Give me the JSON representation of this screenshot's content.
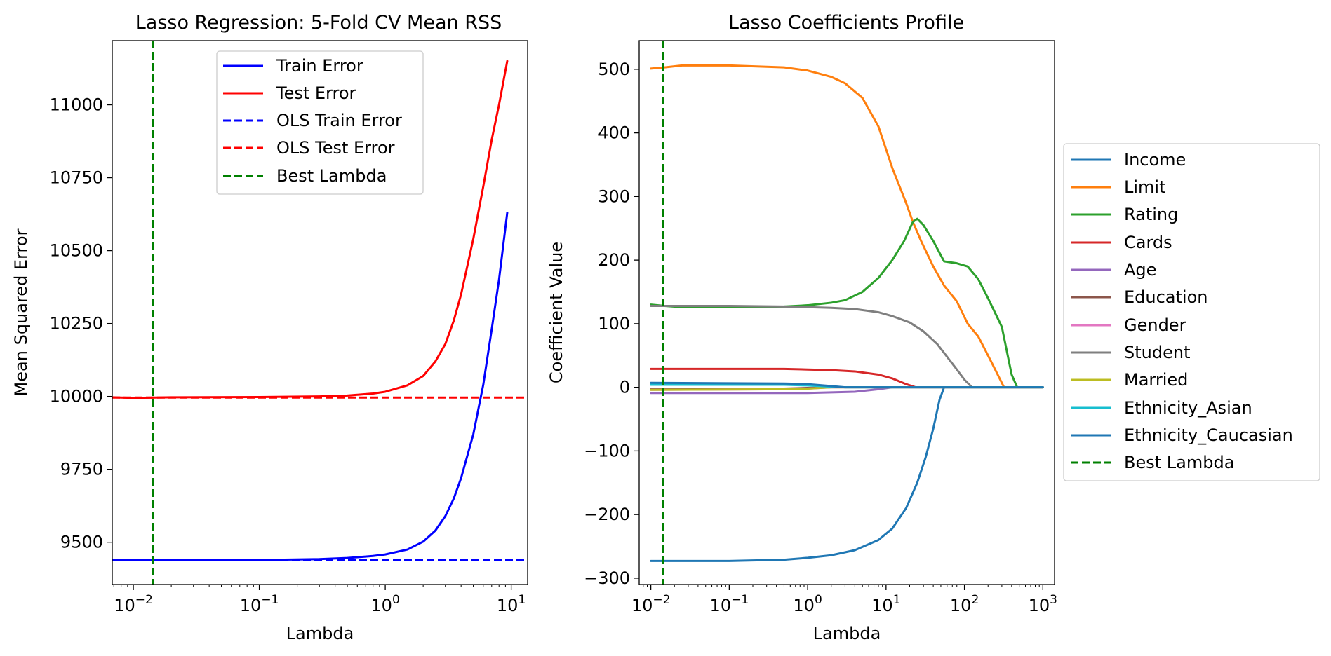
{
  "chart_data": [
    {
      "type": "line",
      "title": "Lasso Regression: 5-Fold CV Mean RSS",
      "xlabel": "Lambda",
      "ylabel": "Mean Squared Error",
      "xscale": "log",
      "xlim": [
        0.0068,
        13.5
      ],
      "ylim": [
        9355,
        11220
      ],
      "grid": false,
      "legend_position": "top-center",
      "x_ticks": [
        {
          "value": 0.01,
          "base": "10",
          "exp": "−2"
        },
        {
          "value": 0.1,
          "base": "10",
          "exp": "−1"
        },
        {
          "value": 1,
          "base": "10",
          "exp": "0"
        },
        {
          "value": 10,
          "base": "10",
          "exp": "1"
        }
      ],
      "y_ticks": [
        {
          "value": 9500,
          "label": "9500"
        },
        {
          "value": 9750,
          "label": "9750"
        },
        {
          "value": 10000,
          "label": "10000"
        },
        {
          "value": 10250,
          "label": "10250"
        },
        {
          "value": 10500,
          "label": "10500"
        },
        {
          "value": 10750,
          "label": "10750"
        },
        {
          "value": 11000,
          "label": "11000"
        }
      ],
      "series": [
        {
          "name": "Train Error",
          "color": "#0000ff",
          "style": "solid",
          "points": [
            [
              0.0068,
              9438
            ],
            [
              0.1,
              9439
            ],
            [
              0.3,
              9442
            ],
            [
              0.5,
              9446
            ],
            [
              0.8,
              9453
            ],
            [
              1,
              9458
            ],
            [
              1.5,
              9475
            ],
            [
              2,
              9502
            ],
            [
              2.5,
              9540
            ],
            [
              3,
              9590
            ],
            [
              3.5,
              9650
            ],
            [
              4,
              9720
            ],
            [
              5,
              9870
            ],
            [
              6,
              10040
            ],
            [
              7,
              10230
            ],
            [
              8,
              10400
            ],
            [
              9.3,
              10630
            ]
          ]
        },
        {
          "name": "Test Error",
          "color": "#ff0000",
          "style": "solid",
          "points": [
            [
              0.0068,
              9997
            ],
            [
              0.01,
              9995
            ],
            [
              0.02,
              9997
            ],
            [
              0.1,
              9998
            ],
            [
              0.3,
              10000
            ],
            [
              0.5,
              10003
            ],
            [
              0.8,
              10010
            ],
            [
              1,
              10016
            ],
            [
              1.5,
              10038
            ],
            [
              2,
              10070
            ],
            [
              2.5,
              10120
            ],
            [
              3,
              10180
            ],
            [
              3.5,
              10260
            ],
            [
              4,
              10350
            ],
            [
              5,
              10540
            ],
            [
              6,
              10720
            ],
            [
              7,
              10880
            ],
            [
              8,
              11000
            ],
            [
              9.3,
              11150
            ]
          ]
        },
        {
          "name": "OLS Train Error",
          "color": "#0000ff",
          "style": "dashed",
          "hline": 9438
        },
        {
          "name": "OLS Test Error",
          "color": "#ff0000",
          "style": "dashed",
          "hline": 9996
        },
        {
          "name": "Best Lambda",
          "color": "#008000",
          "style": "dashed",
          "vline": 0.0143
        }
      ]
    },
    {
      "type": "line",
      "title": "Lasso Coefficients Profile",
      "xlabel": "Lambda",
      "ylabel": "Coefficient Value",
      "xscale": "log",
      "xlim": [
        0.0071,
        1410
      ],
      "ylim": [
        -310,
        545
      ],
      "grid": false,
      "legend_position": "outside-right",
      "x_ticks": [
        {
          "value": 0.01,
          "base": "10",
          "exp": "−2"
        },
        {
          "value": 0.1,
          "base": "10",
          "exp": "−1"
        },
        {
          "value": 1,
          "base": "10",
          "exp": "0"
        },
        {
          "value": 10,
          "base": "10",
          "exp": "1"
        },
        {
          "value": 100,
          "base": "10",
          "exp": "2"
        },
        {
          "value": 1000,
          "base": "10",
          "exp": "3"
        }
      ],
      "y_ticks": [
        {
          "value": -300,
          "label": "−300"
        },
        {
          "value": -200,
          "label": "−200"
        },
        {
          "value": -100,
          "label": "−100"
        },
        {
          "value": 0,
          "label": "0"
        },
        {
          "value": 100,
          "label": "100"
        },
        {
          "value": 200,
          "label": "200"
        },
        {
          "value": 300,
          "label": "300"
        },
        {
          "value": 400,
          "label": "400"
        },
        {
          "value": 500,
          "label": "500"
        }
      ],
      "series": [
        {
          "name": "Income",
          "color": "#1f77b4",
          "style": "solid",
          "points": [
            [
              0.01,
              -273
            ],
            [
              0.1,
              -273
            ],
            [
              0.5,
              -271
            ],
            [
              1,
              -268
            ],
            [
              2,
              -264
            ],
            [
              4,
              -256
            ],
            [
              8,
              -240
            ],
            [
              12,
              -222
            ],
            [
              18,
              -190
            ],
            [
              25,
              -150
            ],
            [
              32,
              -110
            ],
            [
              40,
              -65
            ],
            [
              48,
              -20
            ],
            [
              55,
              0
            ],
            [
              1000,
              0
            ]
          ]
        },
        {
          "name": "Limit",
          "color": "#ff7f0e",
          "style": "solid",
          "points": [
            [
              0.01,
              501
            ],
            [
              0.015,
              503
            ],
            [
              0.025,
              506
            ],
            [
              0.1,
              506
            ],
            [
              0.5,
              503
            ],
            [
              1,
              498
            ],
            [
              2,
              488
            ],
            [
              3,
              478
            ],
            [
              5,
              455
            ],
            [
              8,
              410
            ],
            [
              12,
              345
            ],
            [
              18,
              290
            ],
            [
              22,
              260
            ],
            [
              28,
              230
            ],
            [
              40,
              190
            ],
            [
              55,
              160
            ],
            [
              80,
              135
            ],
            [
              110,
              100
            ],
            [
              150,
              80
            ],
            [
              220,
              40
            ],
            [
              320,
              0
            ],
            [
              1000,
              0
            ]
          ]
        },
        {
          "name": "Rating",
          "color": "#2ca02c",
          "style": "solid",
          "points": [
            [
              0.01,
              130
            ],
            [
              0.015,
              128
            ],
            [
              0.025,
              126
            ],
            [
              0.1,
              126
            ],
            [
              0.5,
              127
            ],
            [
              1,
              129
            ],
            [
              2,
              133
            ],
            [
              3,
              137
            ],
            [
              5,
              150
            ],
            [
              8,
              172
            ],
            [
              12,
              200
            ],
            [
              17,
              230
            ],
            [
              22,
              260
            ],
            [
              25,
              265
            ],
            [
              30,
              255
            ],
            [
              40,
              230
            ],
            [
              55,
              198
            ],
            [
              80,
              195
            ],
            [
              110,
              190
            ],
            [
              150,
              170
            ],
            [
              200,
              140
            ],
            [
              300,
              95
            ],
            [
              400,
              20
            ],
            [
              470,
              0
            ],
            [
              1000,
              0
            ]
          ]
        },
        {
          "name": "Cards",
          "color": "#d62728",
          "style": "solid",
          "points": [
            [
              0.01,
              29
            ],
            [
              0.5,
              29
            ],
            [
              1,
              28
            ],
            [
              2,
              27
            ],
            [
              4,
              25
            ],
            [
              8,
              20
            ],
            [
              12,
              14
            ],
            [
              18,
              5
            ],
            [
              24,
              0
            ],
            [
              1000,
              0
            ]
          ]
        },
        {
          "name": "Age",
          "color": "#9467bd",
          "style": "solid",
          "points": [
            [
              0.01,
              -9
            ],
            [
              0.5,
              -9
            ],
            [
              1,
              -9
            ],
            [
              2,
              -8
            ],
            [
              4,
              -7
            ],
            [
              8,
              -3
            ],
            [
              12,
              0
            ],
            [
              1000,
              0
            ]
          ]
        },
        {
          "name": "Education",
          "color": "#8c564b",
          "style": "solid",
          "points": [
            [
              0.01,
              -3
            ],
            [
              0.5,
              -2
            ],
            [
              1,
              -1
            ],
            [
              2,
              0
            ],
            [
              1000,
              0
            ]
          ]
        },
        {
          "name": "Gender",
          "color": "#e377c2",
          "style": "solid",
          "points": [
            [
              0.01,
              -4
            ],
            [
              0.5,
              -3
            ],
            [
              1,
              -2
            ],
            [
              2,
              0
            ],
            [
              1000,
              0
            ]
          ]
        },
        {
          "name": "Student",
          "color": "#7f7f7f",
          "style": "solid",
          "points": [
            [
              0.01,
              128
            ],
            [
              0.1,
              128
            ],
            [
              0.5,
              127
            ],
            [
              1,
              126
            ],
            [
              2,
              125
            ],
            [
              4,
              123
            ],
            [
              8,
              118
            ],
            [
              12,
              112
            ],
            [
              20,
              102
            ],
            [
              30,
              88
            ],
            [
              45,
              68
            ],
            [
              60,
              48
            ],
            [
              80,
              28
            ],
            [
              100,
              12
            ],
            [
              125,
              0
            ],
            [
              1000,
              0
            ]
          ]
        },
        {
          "name": "Married",
          "color": "#bcbd22",
          "style": "solid",
          "points": [
            [
              0.01,
              -4
            ],
            [
              0.5,
              -3
            ],
            [
              1,
              -2
            ],
            [
              2,
              0
            ],
            [
              1000,
              0
            ]
          ]
        },
        {
          "name": "Ethnicity_Asian",
          "color": "#17becf",
          "style": "solid",
          "points": [
            [
              0.01,
              4
            ],
            [
              0.5,
              4
            ],
            [
              1,
              3
            ],
            [
              2,
              1
            ],
            [
              3,
              0
            ],
            [
              1000,
              0
            ]
          ]
        },
        {
          "name": "Ethnicity_Caucasian",
          "color": "#1f77b4",
          "style": "solid",
          "points": [
            [
              0.01,
              7
            ],
            [
              0.5,
              6
            ],
            [
              1,
              5
            ],
            [
              2,
              2
            ],
            [
              3,
              0
            ],
            [
              1000,
              0
            ]
          ]
        },
        {
          "name": "Best Lambda",
          "color": "#008000",
          "style": "dashed",
          "vline": 0.0143
        }
      ]
    }
  ]
}
